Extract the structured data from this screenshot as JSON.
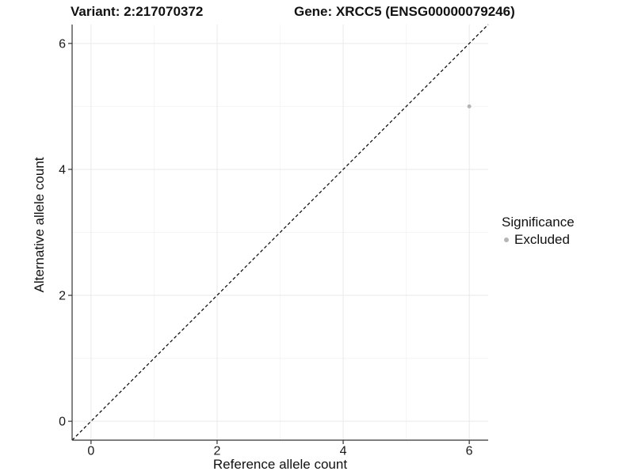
{
  "chart_data": {
    "type": "scatter",
    "titles": {
      "left": "Variant: 2:217070372",
      "right": "Gene: XRCC5 (ENSG00000079246)"
    },
    "xlabel": "Reference allele count",
    "ylabel": "Alternative allele count",
    "xlim": [
      -0.3,
      6.3
    ],
    "ylim": [
      -0.3,
      6.3
    ],
    "x_ticks": {
      "values": [
        0,
        2,
        4,
        6
      ],
      "labels": [
        "0",
        "2",
        "4",
        "6"
      ]
    },
    "y_ticks": {
      "values": [
        0,
        2,
        4,
        6
      ],
      "labels": [
        "0",
        "2",
        "4",
        "6"
      ]
    },
    "minor_gridlines": [
      1,
      3,
      5
    ],
    "grid": true,
    "reference_line": {
      "type": "identity",
      "style": "dashed",
      "color": "#000000",
      "from": [
        -0.3,
        -0.3
      ],
      "to": [
        6.3,
        6.3
      ]
    },
    "points": [
      {
        "x": 6,
        "y": 5,
        "series": "Excluded"
      }
    ],
    "legend": {
      "title": "Significance",
      "position": "right",
      "entries": [
        {
          "label": "Excluded",
          "color": "#b5b5b5"
        }
      ]
    },
    "colors": {
      "point": "#b5b5b5",
      "grid_major": "#e9e9e9",
      "grid_minor": "#f5f5f5",
      "axis_line": "#333333",
      "tick_text": "#1a1a1a",
      "background": "#ffffff"
    }
  }
}
